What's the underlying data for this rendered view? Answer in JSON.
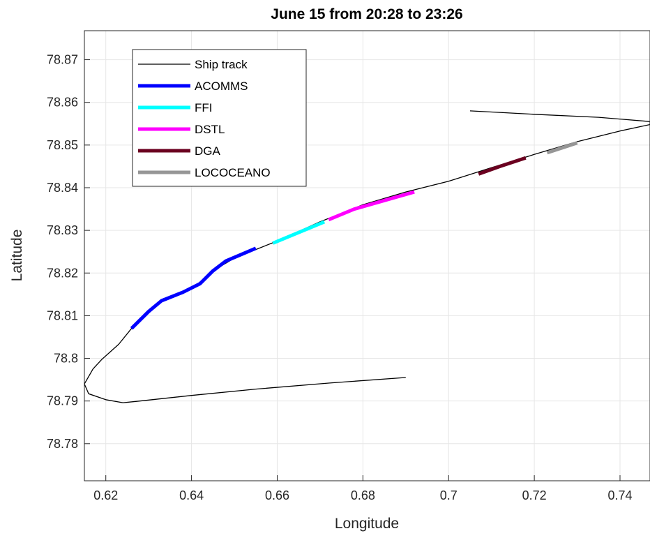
{
  "chart_data": {
    "type": "line",
    "title": "June 15 from 20:28 to 23:26",
    "xlabel": "Longitude",
    "ylabel": "Latitude",
    "xlim": [
      0.615,
      0.747
    ],
    "ylim": [
      78.7713,
      78.8768
    ],
    "xticks": [
      "0.62",
      "0.64",
      "0.66",
      "0.68",
      "0.7",
      "0.72",
      "0.74"
    ],
    "yticks": [
      "78.78",
      "78.79",
      "78.8",
      "78.81",
      "78.82",
      "78.83",
      "78.84",
      "78.85",
      "78.86",
      "78.87"
    ],
    "grid": true,
    "legend_position": "top-left",
    "series": [
      {
        "name": "Ship track",
        "color": "#000000",
        "x": [
          0.69,
          0.672,
          0.655,
          0.64,
          0.627,
          0.624,
          0.62,
          0.616,
          0.615,
          0.617,
          0.619,
          0.623,
          0.626,
          0.63,
          0.633,
          0.64,
          0.645,
          0.65,
          0.655,
          0.66,
          0.67,
          0.68,
          0.69,
          0.7,
          0.71,
          0.72,
          0.73,
          0.74,
          0.747,
          0.747,
          0.735,
          0.72,
          0.705
        ],
        "y": [
          78.7955,
          78.7942,
          78.7928,
          78.7913,
          78.7899,
          78.7896,
          78.7903,
          78.7917,
          78.794,
          78.7975,
          78.7997,
          78.8033,
          78.807,
          78.811,
          78.8135,
          78.8162,
          78.8205,
          78.8235,
          78.8255,
          78.8275,
          78.832,
          78.836,
          78.839,
          78.8415,
          78.8447,
          78.8478,
          78.8508,
          78.8533,
          78.8548,
          78.8555,
          78.8565,
          78.8572,
          78.858
        ]
      },
      {
        "name": "ACOMMS",
        "color": "#0000FF",
        "x": [
          0.626,
          0.63,
          0.633,
          0.638,
          0.642,
          0.645,
          0.648,
          0.652,
          0.655
        ],
        "y": [
          78.807,
          78.811,
          78.8135,
          78.8155,
          78.8175,
          78.8205,
          78.8228,
          78.8245,
          78.8258
        ]
      },
      {
        "name": "FFI",
        "color": "#00FFFF",
        "x": [
          0.659,
          0.665,
          0.671
        ],
        "y": [
          78.827,
          78.8295,
          78.832
        ]
      },
      {
        "name": "DSTL",
        "color": "#FF00FF",
        "x": [
          0.672,
          0.678,
          0.685,
          0.692
        ],
        "y": [
          78.8325,
          78.835,
          78.837,
          78.839
        ]
      },
      {
        "name": "DGA",
        "color": "#6B0020",
        "x": [
          0.707,
          0.712,
          0.718
        ],
        "y": [
          78.8432,
          78.845,
          78.847
        ]
      },
      {
        "name": "LOCOCEANO",
        "color": "#969696",
        "x": [
          0.723,
          0.727,
          0.73
        ],
        "y": [
          78.8482,
          78.8495,
          78.8505
        ]
      }
    ]
  }
}
